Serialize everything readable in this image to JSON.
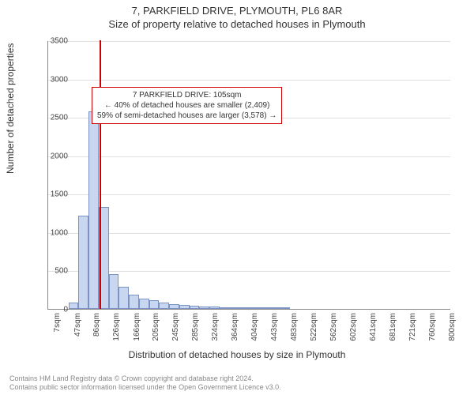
{
  "titles": {
    "line1": "7, PARKFIELD DRIVE, PLYMOUTH, PL6 8AR",
    "line2": "Size of property relative to detached houses in Plymouth"
  },
  "axes": {
    "ylabel": "Number of detached properties",
    "xlabel": "Distribution of detached houses by size in Plymouth",
    "ylim": [
      0,
      3500
    ],
    "ytick_step": 500,
    "yticks": [
      0,
      500,
      1000,
      1500,
      2000,
      2500,
      3000,
      3500
    ]
  },
  "chart": {
    "type": "bar",
    "bar_fill": "#c8d6ef",
    "bar_border": "#7a93c4",
    "grid_color": "#e0e0e0",
    "background_color": "#ffffff",
    "xtick_labels": [
      "7sqm",
      "47sqm",
      "86sqm",
      "126sqm",
      "166sqm",
      "205sqm",
      "245sqm",
      "285sqm",
      "324sqm",
      "364sqm",
      "404sqm",
      "443sqm",
      "483sqm",
      "522sqm",
      "562sqm",
      "602sqm",
      "641sqm",
      "681sqm",
      "721sqm",
      "760sqm",
      "800sqm"
    ],
    "xtick_positions": [
      7,
      47,
      86,
      126,
      166,
      205,
      245,
      285,
      324,
      364,
      404,
      443,
      483,
      522,
      562,
      602,
      641,
      681,
      721,
      760,
      800
    ],
    "x_range": [
      0,
      810
    ],
    "num_bins": 40,
    "values": [
      0,
      0,
      80,
      1220,
      2570,
      1330,
      450,
      290,
      190,
      130,
      110,
      80,
      60,
      50,
      40,
      35,
      30,
      25,
      20,
      18,
      15,
      12,
      10,
      8,
      0,
      0,
      0,
      0,
      0,
      0,
      0,
      0,
      0,
      0,
      0,
      0,
      0,
      0,
      0,
      0
    ]
  },
  "marker": {
    "x_value": 105,
    "color": "#cc0000",
    "height_value": 3500
  },
  "infobox": {
    "line1": "7 PARKFIELD DRIVE: 105sqm",
    "line2": "← 40% of detached houses are smaller (2,409)",
    "line3": "59% of semi-detached houses are larger (3,578) →",
    "border_color": "#cc0000"
  },
  "footer": {
    "line1": "Contains HM Land Registry data © Crown copyright and database right 2024.",
    "line2": "Contains public sector information licensed under the Open Government Licence v3.0."
  }
}
